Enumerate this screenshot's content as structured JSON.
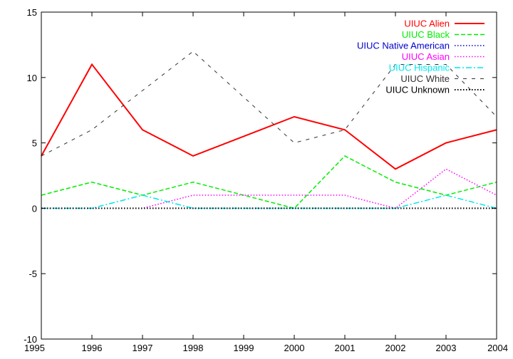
{
  "chart_data": {
    "type": "line",
    "title": "",
    "xlabel": "",
    "ylabel": "",
    "xlim": [
      1995,
      2004
    ],
    "ylim": [
      -10,
      15
    ],
    "x_ticks": [
      1995,
      1996,
      1997,
      1998,
      1999,
      2000,
      2001,
      2002,
      2003,
      2004
    ],
    "y_ticks": [
      -10,
      -5,
      0,
      5,
      10,
      15
    ],
    "grid": false,
    "legend_position": "top-right",
    "x": [
      1995,
      1996,
      1997,
      1998,
      1999,
      2000,
      2001,
      2002,
      2003,
      2004
    ],
    "series": [
      {
        "name": "UIUC Alien",
        "color": "#ff0000",
        "dash": "solid",
        "width": 2,
        "values": [
          4,
          11,
          6,
          4,
          5.5,
          7,
          6,
          3,
          5,
          6
        ]
      },
      {
        "name": "UIUC Black",
        "color": "#00ee00",
        "dash": "dashed",
        "width": 1.5,
        "values": [
          1,
          2,
          1,
          2,
          1,
          0,
          4,
          2,
          1,
          2
        ]
      },
      {
        "name": "UIUC Native American",
        "color": "#0000cc",
        "dash": "dotted",
        "width": 1.5,
        "values": [
          0,
          0,
          0,
          0,
          0,
          0,
          0,
          0,
          0,
          0
        ]
      },
      {
        "name": "UIUC Asian",
        "color": "#ff00ff",
        "dash": "dotted",
        "width": 1.5,
        "values": [
          0,
          0,
          0,
          1,
          1,
          1,
          1,
          0,
          3,
          1
        ]
      },
      {
        "name": "UIUC Hispanic",
        "color": "#00e5ee",
        "dash": "dashdot",
        "width": 1.5,
        "values": [
          0,
          0,
          1,
          0,
          0,
          0,
          0,
          0,
          1,
          0
        ]
      },
      {
        "name": "UIUC White",
        "color": "#333333",
        "dash": "sparse-dash",
        "width": 1,
        "values": [
          4,
          6,
          9,
          12,
          8.5,
          5,
          6,
          11,
          11,
          7
        ]
      },
      {
        "name": "UIUC Unknown",
        "color": "#000000",
        "dash": "dotted",
        "width": 2,
        "values": [
          0,
          0,
          0,
          0,
          0,
          0,
          0,
          0,
          0,
          0
        ]
      }
    ]
  }
}
